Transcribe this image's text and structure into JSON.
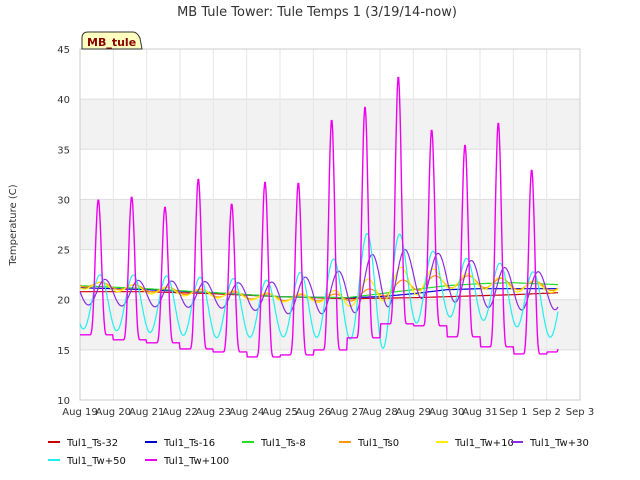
{
  "chart_data": {
    "type": "line",
    "title": "MB Tule Tower: Tule Temps 1 (3/19/14-now)",
    "ylabel": "Temperature (C)",
    "xlabel": "",
    "badge": "MB_tule",
    "ylim": [
      10,
      45
    ],
    "yticks": [
      10,
      15,
      20,
      25,
      30,
      35,
      40,
      45
    ],
    "xlim": [
      0,
      15
    ],
    "xtick_labels": [
      "Aug 19",
      "Aug 20",
      "Aug 21",
      "Aug 22",
      "Aug 23",
      "Aug 24",
      "Aug 25",
      "Aug 26",
      "Aug 27",
      "Aug 28",
      "Aug 29",
      "Aug 30",
      "Aug 31",
      "Sep 1",
      "Sep 2",
      "Sep 3"
    ],
    "x_unit": "days since Aug 19",
    "x_end": 14.35,
    "grid": true,
    "background_bands": "alternating light gray",
    "legend_position": "bottom",
    "series": [
      {
        "name": "Tul1_Ts-32",
        "color": "#cc0000",
        "points": [
          [
            0,
            20.8
          ],
          [
            2,
            20.8
          ],
          [
            4,
            20.6
          ],
          [
            6,
            20.3
          ],
          [
            8,
            20.1
          ],
          [
            10,
            20.2
          ],
          [
            12,
            20.4
          ],
          [
            13,
            20.5
          ],
          [
            14.35,
            20.7
          ]
        ]
      },
      {
        "name": "Tul1_Ts-16",
        "color": "#0000cc",
        "points": [
          [
            0,
            21.2
          ],
          [
            2,
            21.0
          ],
          [
            4,
            20.7
          ],
          [
            6,
            20.3
          ],
          [
            8,
            20.2
          ],
          [
            9,
            20.3
          ],
          [
            10,
            20.6
          ],
          [
            11,
            21.0
          ],
          [
            12,
            21.1
          ],
          [
            13,
            21.1
          ],
          [
            14.35,
            21.1
          ]
        ]
      },
      {
        "name": "Tul1_Ts-8",
        "color": "#22dd22",
        "points": [
          [
            0,
            21.4
          ],
          [
            2,
            21.1
          ],
          [
            4,
            20.7
          ],
          [
            6,
            20.3
          ],
          [
            8,
            20.2
          ],
          [
            9,
            20.6
          ],
          [
            10,
            21.0
          ],
          [
            11,
            21.4
          ],
          [
            12,
            21.6
          ],
          [
            13,
            21.7
          ],
          [
            14.35,
            21.5
          ]
        ]
      },
      {
        "name": "Tul1_Ts0",
        "color": "#ff9900",
        "period": 1,
        "peak_offset": 0.65,
        "base": [
          [
            0,
            21.6
          ],
          [
            2,
            21.1
          ],
          [
            4,
            20.6
          ],
          [
            6,
            20.2
          ],
          [
            8,
            20.2
          ],
          [
            9,
            20.8
          ],
          [
            10,
            21.6
          ],
          [
            11,
            21.8
          ],
          [
            12,
            21.8
          ],
          [
            13,
            21.5
          ],
          [
            14.35,
            21.3
          ]
        ],
        "amp": [
          [
            0,
            0.3
          ],
          [
            7,
            0.3
          ],
          [
            9,
            0.5
          ],
          [
            10,
            0.7
          ],
          [
            14.35,
            0.4
          ]
        ]
      },
      {
        "name": "Tul1_Tw+10",
        "color": "#ffee00",
        "period": 1,
        "peak_offset": 0.62,
        "base": [
          [
            0,
            21.5
          ],
          [
            2,
            21.0
          ],
          [
            4,
            20.6
          ],
          [
            6,
            20.2
          ],
          [
            8,
            20.2
          ],
          [
            9,
            21.2
          ],
          [
            10,
            22.0
          ],
          [
            11,
            21.9
          ],
          [
            12,
            21.8
          ],
          [
            13,
            21.4
          ],
          [
            14.35,
            21.2
          ]
        ],
        "amp": [
          [
            0,
            0.4
          ],
          [
            7,
            0.4
          ],
          [
            9,
            1.4
          ],
          [
            10,
            1.6
          ],
          [
            11,
            0.8
          ],
          [
            14.35,
            0.5
          ]
        ]
      },
      {
        "name": "Tul1_Tw+30",
        "color": "#8a2be2",
        "period": 1,
        "peak_offset": 0.75,
        "base": [
          [
            0,
            20.8
          ],
          [
            2,
            20.6
          ],
          [
            4,
            20.5
          ],
          [
            6,
            20.2
          ],
          [
            8,
            20.8
          ],
          [
            9,
            22.0
          ],
          [
            10,
            22.6
          ],
          [
            11,
            22.2
          ],
          [
            12,
            21.5
          ],
          [
            13,
            21.0
          ],
          [
            14.35,
            20.8
          ]
        ],
        "amp": [
          [
            0,
            1.3
          ],
          [
            5,
            1.3
          ],
          [
            8,
            2.2
          ],
          [
            9,
            3.0
          ],
          [
            10,
            2.4
          ],
          [
            12,
            2.2
          ],
          [
            14.35,
            1.8
          ]
        ]
      },
      {
        "name": "Tul1_Tw+50",
        "color": "#22eeee",
        "period": 1,
        "peak_offset": 0.6,
        "base": [
          [
            0,
            19.8
          ],
          [
            2,
            19.6
          ],
          [
            4,
            19.2
          ],
          [
            6,
            19.1
          ],
          [
            8,
            20.4
          ],
          [
            9,
            21.4
          ],
          [
            10,
            21.6
          ],
          [
            11,
            21.3
          ],
          [
            12,
            21.0
          ],
          [
            13,
            20.4
          ],
          [
            14.35,
            19.0
          ]
        ],
        "amp": [
          [
            0,
            2.7
          ],
          [
            4,
            3.0
          ],
          [
            6,
            2.8
          ],
          [
            8,
            4.2
          ],
          [
            9,
            6.5
          ],
          [
            10,
            4.0
          ],
          [
            11,
            3.0
          ],
          [
            12,
            3.0
          ],
          [
            14.35,
            3.0
          ]
        ]
      },
      {
        "name": "Tul1_Tw+100",
        "color": "#ee00ee",
        "spike": true,
        "period": 1,
        "peak_offset": 0.55,
        "peaks": [
          [
            0,
            30.0
          ],
          [
            1,
            30.3
          ],
          [
            2,
            29.3
          ],
          [
            3,
            32.1
          ],
          [
            4,
            29.6
          ],
          [
            5,
            31.8
          ],
          [
            6,
            31.7
          ],
          [
            7,
            38.0
          ],
          [
            8,
            39.3
          ],
          [
            9,
            42.3
          ],
          [
            10,
            37.0
          ],
          [
            11,
            35.5
          ],
          [
            12,
            37.7
          ],
          [
            13,
            33.0
          ]
        ],
        "troughs": [
          [
            0,
            16.5
          ],
          [
            1,
            16.0
          ],
          [
            2,
            15.7
          ],
          [
            3,
            15.1
          ],
          [
            4,
            14.8
          ],
          [
            5,
            14.3
          ],
          [
            6,
            14.5
          ],
          [
            7,
            15.0
          ],
          [
            8,
            16.2
          ],
          [
            9,
            17.6
          ],
          [
            10,
            17.4
          ],
          [
            11,
            16.3
          ],
          [
            12,
            15.3
          ],
          [
            13,
            14.6
          ],
          [
            14,
            14.8
          ]
        ]
      }
    ]
  }
}
